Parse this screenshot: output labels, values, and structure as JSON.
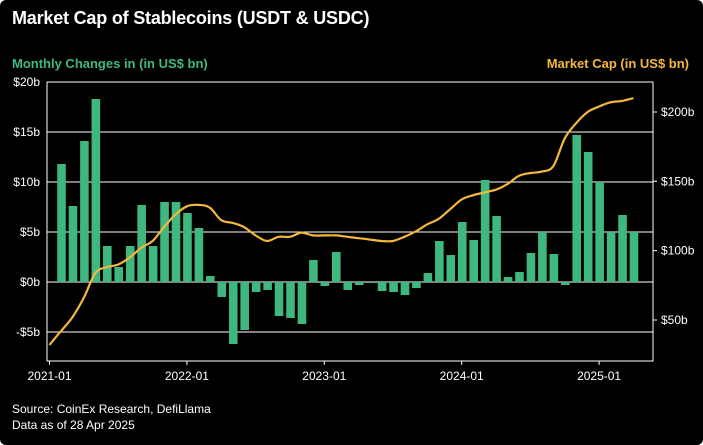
{
  "title": "Market Cap of Stablecoins (USDT & USDC)",
  "left_axis_title": "Monthly Changes in (in US$ bn)",
  "right_axis_title": "Market Cap (in US$ bn)",
  "source": "Source: CoinEx Research, DefiLlama",
  "data_as_of": "Data as of 28 Apr 2025",
  "colors": {
    "bar": "#3fb87f",
    "line": "#f2b83c",
    "background": "#000000",
    "grid": "#ffffff"
  },
  "chart_data": {
    "type": "bar",
    "x_tick_labels": [
      "2021-01",
      "2022-01",
      "2023-01",
      "2024-01",
      "2025-01"
    ],
    "y_left": {
      "range": [
        -7,
        20
      ],
      "ticks": [
        -5,
        0,
        5,
        10,
        15,
        20
      ],
      "tick_labels": [
        "-$5b",
        "$0b",
        "$5b",
        "$10b",
        "$15b",
        "$20b"
      ]
    },
    "y_right": {
      "range": [
        25,
        225
      ],
      "ticks": [
        50,
        100,
        150,
        200
      ],
      "tick_labels": [
        "$50b",
        "$100b",
        "$150b",
        "$200b"
      ]
    },
    "grid": "horizontal",
    "series": [
      {
        "type": "bar",
        "axis": "left",
        "x": [
          "2021-01",
          "2021-02",
          "2021-03",
          "2021-04",
          "2021-05",
          "2021-06",
          "2021-07",
          "2021-08",
          "2021-09",
          "2021-10",
          "2021-11",
          "2021-12",
          "2022-01",
          "2022-02",
          "2022-03",
          "2022-04",
          "2022-05",
          "2022-06",
          "2022-07",
          "2022-08",
          "2022-09",
          "2022-10",
          "2022-11",
          "2022-12",
          "2023-01",
          "2023-02",
          "2023-03",
          "2023-04",
          "2023-05",
          "2023-06",
          "2023-07",
          "2023-08",
          "2023-09",
          "2023-10",
          "2023-11",
          "2023-12",
          "2024-01",
          "2024-02",
          "2024-03",
          "2024-04",
          "2024-05",
          "2024-06",
          "2024-07",
          "2024-08",
          "2024-09",
          "2024-10",
          "2024-11",
          "2024-12",
          "2025-01",
          "2025-02",
          "2025-03",
          "2025-04"
        ],
        "values": [
          11.8,
          7.6,
          14.1,
          18.3,
          3.6,
          1.5,
          3.6,
          7.7,
          3.6,
          8.0,
          8.0,
          6.9,
          5.4,
          0.6,
          -1.5,
          -6.2,
          -4.8,
          -1.0,
          -0.8,
          -3.4,
          -3.6,
          -4.2,
          2.2,
          -0.4,
          3.0,
          -0.8,
          -0.3,
          -0.1,
          -0.9,
          -1.0,
          -1.3,
          -0.6,
          0.9,
          4.1,
          2.7,
          6.0,
          4.2,
          10.2,
          6.6,
          0.5,
          1.0,
          2.9,
          5.0,
          2.8,
          -0.3,
          14.7,
          13.0,
          10.0,
          5.0,
          6.7,
          5.0,
          0.0
        ]
      },
      {
        "type": "line",
        "axis": "right",
        "x": [
          "2021-01",
          "2021-02",
          "2021-03",
          "2021-04",
          "2021-05",
          "2021-06",
          "2021-07",
          "2021-08",
          "2021-09",
          "2021-10",
          "2021-11",
          "2021-12",
          "2022-01",
          "2022-02",
          "2022-03",
          "2022-04",
          "2022-05",
          "2022-06",
          "2022-07",
          "2022-08",
          "2022-09",
          "2022-10",
          "2022-11",
          "2022-12",
          "2023-01",
          "2023-02",
          "2023-03",
          "2023-04",
          "2023-05",
          "2023-06",
          "2023-07",
          "2023-08",
          "2023-09",
          "2023-10",
          "2023-11",
          "2023-12",
          "2024-01",
          "2024-02",
          "2024-03",
          "2024-04",
          "2024-05",
          "2024-06",
          "2024-07",
          "2024-08",
          "2024-09",
          "2024-10",
          "2024-11",
          "2024-12",
          "2025-01",
          "2025-02",
          "2025-03",
          "2025-04"
        ],
        "values": [
          32,
          42,
          52,
          66,
          84,
          88,
          90,
          95,
          102,
          107,
          117,
          126,
          132,
          133,
          131,
          122,
          120,
          117,
          111,
          107,
          110,
          110,
          113,
          111,
          111,
          111,
          110,
          109,
          108,
          107,
          107,
          110,
          114,
          119,
          123,
          130,
          137,
          140,
          142,
          144,
          148,
          154,
          156,
          157,
          161,
          181,
          192,
          200,
          204,
          207,
          208,
          210
        ]
      }
    ]
  }
}
